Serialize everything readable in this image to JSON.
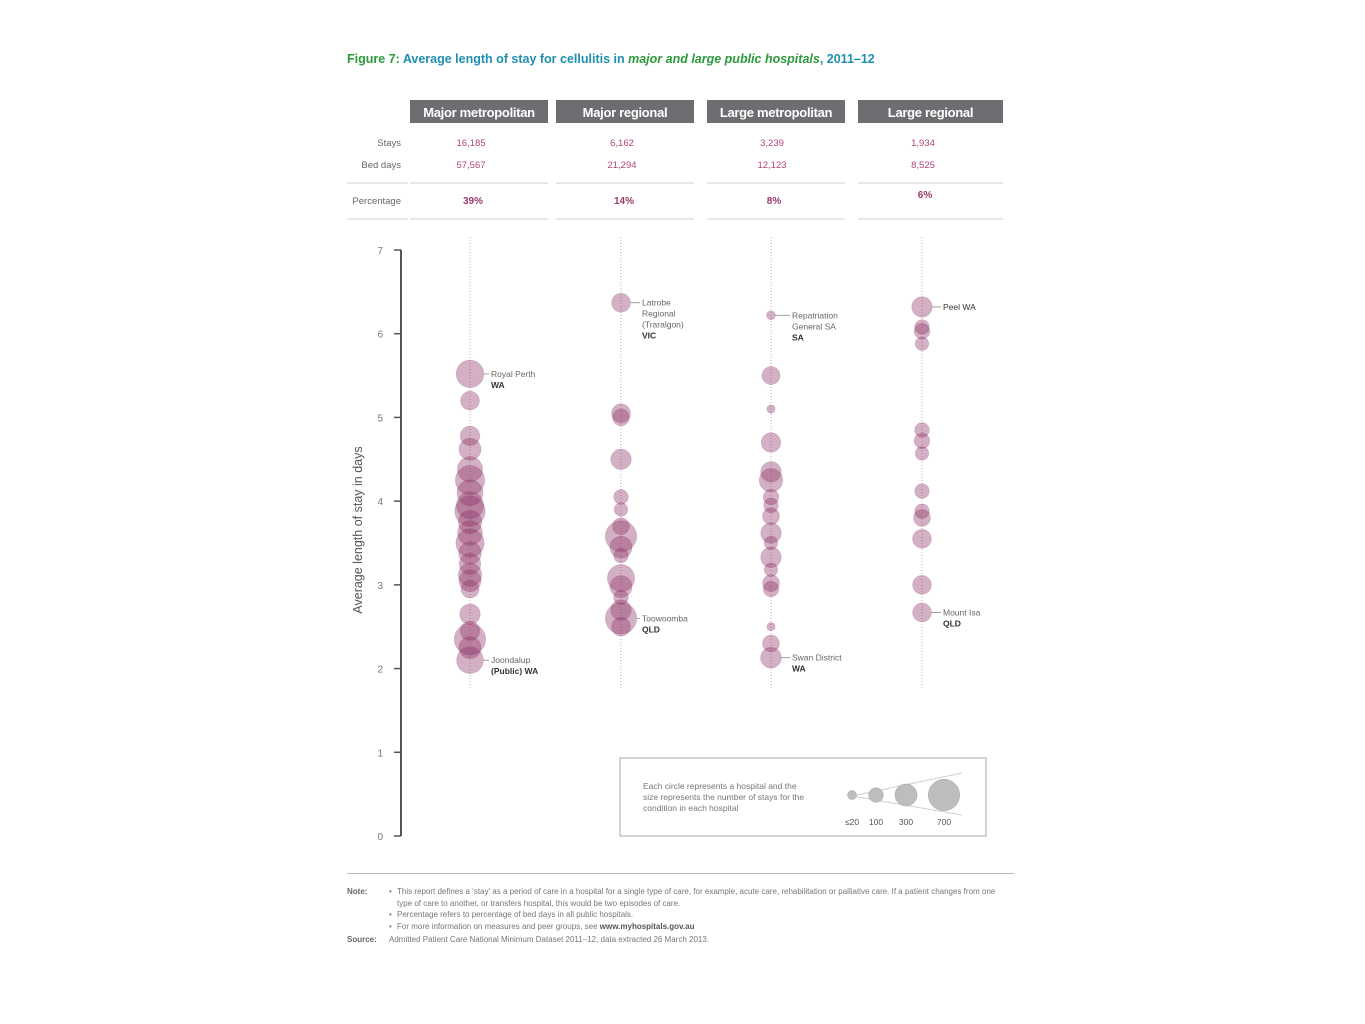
{
  "figure": {
    "label": "Figure 7:",
    "title_pre": "Average length of stay for cellulitis in",
    "title_em": "major and large public hospitals",
    "title_post": ", 2011–12"
  },
  "row_labels": {
    "stays": "Stays",
    "bed_days": "Bed days",
    "percentage": "Percentage"
  },
  "groups": [
    {
      "name": "Major metropolitan",
      "stays": "16,185",
      "bed_days": "57,567",
      "percentage": "39%"
    },
    {
      "name": "Major regional",
      "stays": "6,162",
      "bed_days": "21,294",
      "percentage": "14%"
    },
    {
      "name": "Large metropolitan",
      "stays": "3,239",
      "bed_days": "12,123",
      "percentage": "8%"
    },
    {
      "name": "Large regional",
      "stays": "1,934",
      "bed_days": "8,525",
      "percentage": "6%"
    }
  ],
  "chart_data": {
    "type": "scatter",
    "ylabel": "Average length of stay in days",
    "ylim": [
      0,
      7
    ],
    "yticks": [
      "0",
      "1",
      "2",
      "3",
      "4",
      "5",
      "6",
      "7"
    ],
    "point_color": "#8c2f63",
    "series": [
      {
        "name": "Major metropolitan",
        "points": [
          {
            "y": 5.52,
            "stays": 520
          },
          {
            "y": 5.2,
            "stays": 200
          },
          {
            "y": 4.78,
            "stays": 220
          },
          {
            "y": 4.62,
            "stays": 300
          },
          {
            "y": 4.38,
            "stays": 420
          },
          {
            "y": 4.25,
            "stays": 600
          },
          {
            "y": 4.1,
            "stays": 450
          },
          {
            "y": 3.95,
            "stays": 500
          },
          {
            "y": 3.88,
            "stays": 650
          },
          {
            "y": 3.75,
            "stays": 350
          },
          {
            "y": 3.62,
            "stays": 400
          },
          {
            "y": 3.5,
            "stays": 550
          },
          {
            "y": 3.38,
            "stays": 320
          },
          {
            "y": 3.25,
            "stays": 280
          },
          {
            "y": 3.12,
            "stays": 350
          },
          {
            "y": 3.05,
            "stays": 300
          },
          {
            "y": 2.95,
            "stays": 180
          },
          {
            "y": 2.65,
            "stays": 250
          },
          {
            "y": 2.45,
            "stays": 220
          },
          {
            "y": 2.35,
            "stays": 700
          },
          {
            "y": 2.25,
            "stays": 300
          },
          {
            "y": 2.1,
            "stays": 480
          }
        ]
      },
      {
        "name": "Major regional",
        "points": [
          {
            "y": 6.37,
            "stays": 200
          },
          {
            "y": 5.05,
            "stays": 200
          },
          {
            "y": 5.0,
            "stays": 150
          },
          {
            "y": 4.5,
            "stays": 250
          },
          {
            "y": 4.05,
            "stays": 100
          },
          {
            "y": 3.9,
            "stays": 80
          },
          {
            "y": 3.7,
            "stays": 150
          },
          {
            "y": 3.58,
            "stays": 700
          },
          {
            "y": 3.45,
            "stays": 300
          },
          {
            "y": 3.35,
            "stays": 100
          },
          {
            "y": 3.08,
            "stays": 500
          },
          {
            "y": 2.98,
            "stays": 300
          },
          {
            "y": 2.85,
            "stays": 100
          },
          {
            "y": 2.7,
            "stays": 250
          },
          {
            "y": 2.6,
            "stays": 700
          },
          {
            "y": 2.5,
            "stays": 200
          }
        ]
      },
      {
        "name": "Large metropolitan",
        "points": [
          {
            "y": 6.22,
            "stays": 20
          },
          {
            "y": 5.5,
            "stays": 180
          },
          {
            "y": 5.1,
            "stays": 15
          },
          {
            "y": 4.7,
            "stays": 220
          },
          {
            "y": 4.35,
            "stays": 250
          },
          {
            "y": 4.25,
            "stays": 350
          },
          {
            "y": 4.05,
            "stays": 120
          },
          {
            "y": 3.95,
            "stays": 100
          },
          {
            "y": 3.82,
            "stays": 150
          },
          {
            "y": 3.62,
            "stays": 250
          },
          {
            "y": 3.5,
            "stays": 80
          },
          {
            "y": 3.33,
            "stays": 250
          },
          {
            "y": 3.18,
            "stays": 80
          },
          {
            "y": 3.02,
            "stays": 150
          },
          {
            "y": 2.95,
            "stays": 120
          },
          {
            "y": 2.5,
            "stays": 15
          },
          {
            "y": 2.3,
            "stays": 150
          },
          {
            "y": 2.13,
            "stays": 260
          }
        ]
      },
      {
        "name": "Large regional",
        "points": [
          {
            "y": 6.32,
            "stays": 250
          },
          {
            "y": 6.08,
            "stays": 100
          },
          {
            "y": 6.03,
            "stays": 120
          },
          {
            "y": 5.88,
            "stays": 80
          },
          {
            "y": 4.85,
            "stays": 100
          },
          {
            "y": 4.72,
            "stays": 120
          },
          {
            "y": 4.57,
            "stays": 80
          },
          {
            "y": 4.12,
            "stays": 100
          },
          {
            "y": 3.88,
            "stays": 100
          },
          {
            "y": 3.8,
            "stays": 150
          },
          {
            "y": 3.55,
            "stays": 200
          },
          {
            "y": 3.0,
            "stays": 200
          },
          {
            "y": 2.67,
            "stays": 200
          }
        ]
      }
    ],
    "annotations": [
      {
        "group": 0,
        "y": 5.52,
        "lines": [
          "Royal Perth",
          "WA"
        ]
      },
      {
        "group": 0,
        "y": 2.1,
        "lines": [
          "Joondalup",
          "(Public) WA"
        ]
      },
      {
        "group": 1,
        "y": 6.37,
        "lines": [
          "Latrobe",
          "Regional",
          "(Traralgon)",
          "VIC"
        ]
      },
      {
        "group": 1,
        "y": 2.6,
        "lines": [
          "Toowoomba",
          "QLD"
        ]
      },
      {
        "group": 2,
        "y": 6.22,
        "lines": [
          "Repatriation",
          "General SA",
          "SA"
        ]
      },
      {
        "group": 2,
        "y": 2.13,
        "lines": [
          "Swan District",
          "WA"
        ]
      },
      {
        "group": 3,
        "y": 6.32,
        "lines": [
          "Peel WA"
        ]
      },
      {
        "group": 3,
        "y": 2.67,
        "lines": [
          "Mount Isa",
          "QLD"
        ]
      }
    ],
    "legend": {
      "text": [
        "Each circle represents a hospital and the",
        "size represents the number of stays for the",
        "condition in each hospital"
      ],
      "sizes": [
        {
          "label": "≤20",
          "stays": 20
        },
        {
          "label": "100",
          "stays": 100
        },
        {
          "label": "300",
          "stays": 300
        },
        {
          "label": "700",
          "stays": 700
        }
      ]
    }
  },
  "notes": {
    "note_label": "Note:",
    "items": [
      "This report defines a ‘stay’ as a period of care in a hospital for a single type of care, for example, acute care, rehabilitation or palliative care. If a patient changes from one type of care to another, or transfers hospital, this would be two episodes of care.",
      "Percentage refers to percentage of bed days in all public hospitals.",
      "For more information on measures and peer groups, see"
    ],
    "link": "www.myhospitals.gov.au",
    "source_label": "Source:",
    "source": "Admitted Patient Care National Minimum Dataset 2011–12, data extracted 26 March 2013."
  }
}
